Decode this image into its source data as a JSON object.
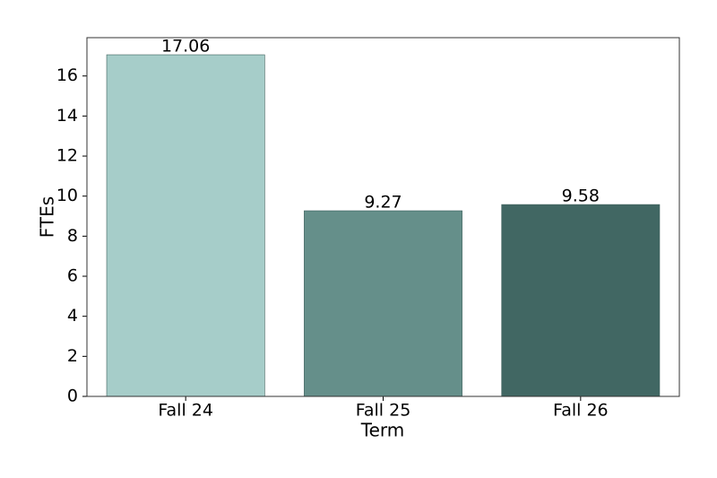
{
  "chart_data": {
    "type": "bar",
    "x_label": "Term",
    "y_label": "FTEs",
    "categories": [
      "Fall 24",
      "Fall 25",
      "Fall 26"
    ],
    "values": [
      17.06,
      9.27,
      9.58
    ],
    "colors": [
      "#a6cdc9",
      "#658f8a",
      "#416763"
    ],
    "ylim": [
      0,
      17.913
    ],
    "yticks": [
      0,
      2,
      4,
      6,
      8,
      10,
      12,
      14,
      16
    ],
    "grid": false
  }
}
